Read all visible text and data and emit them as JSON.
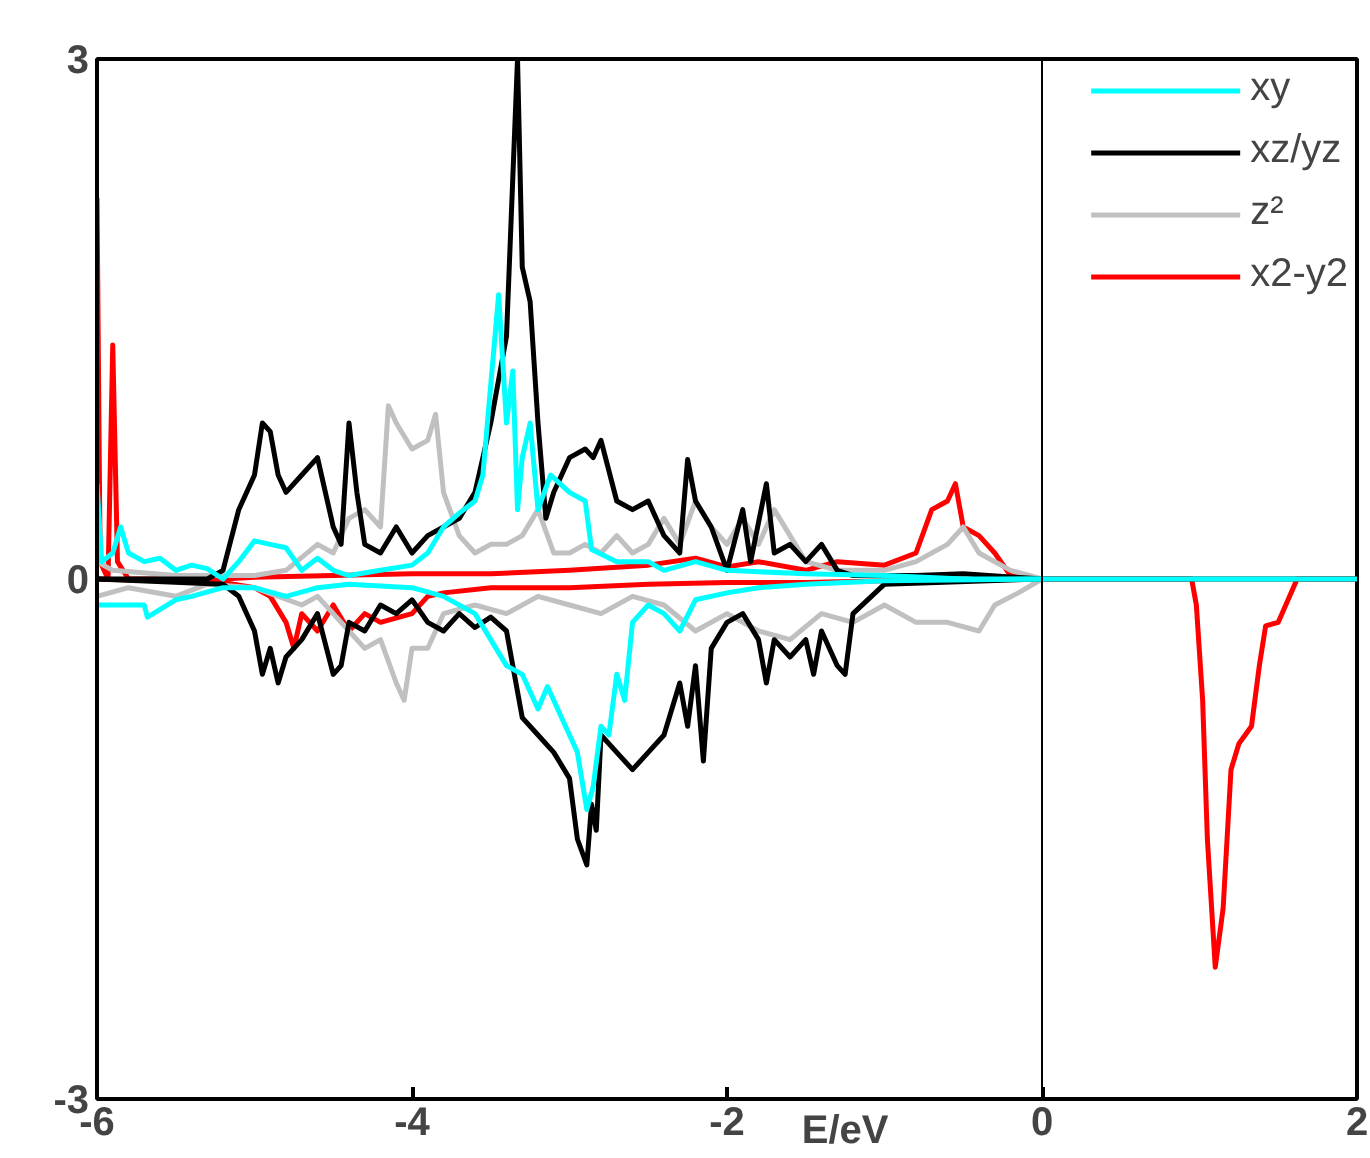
{
  "chart_data": {
    "type": "line",
    "xlabel": "E/eV",
    "xlim": [
      -6,
      2
    ],
    "ylim": [
      -3,
      3
    ],
    "xticks": [
      -6,
      -4,
      -2,
      0,
      2
    ],
    "yticks": [
      -3,
      0,
      3
    ],
    "legend": "top right",
    "ref_lines": [
      {
        "axis": "x",
        "value": 0,
        "color": "#000000"
      }
    ],
    "series": [
      {
        "name": "xy",
        "color": "#00ffff",
        "x": [
          -6.0,
          -5.97,
          -5.9,
          -5.85,
          -5.8,
          -5.7,
          -5.6,
          -5.5,
          -5.4,
          -5.3,
          -5.2,
          -5.1,
          -5.0,
          -4.9,
          -4.8,
          -4.7,
          -4.6,
          -4.5,
          -4.4,
          -4.2,
          -4.0,
          -3.9,
          -3.8,
          -3.7,
          -3.6,
          -3.55,
          -3.45,
          -3.4,
          -3.36,
          -3.33,
          -3.3,
          -3.25,
          -3.2,
          -3.12,
          -3.0,
          -2.9,
          -2.86,
          -2.7,
          -2.5,
          -2.4,
          -2.2,
          -2.0,
          -1.5,
          -1.0,
          -0.5,
          0,
          2
        ],
        "values": [
          0.55,
          0.1,
          0.15,
          0.3,
          0.15,
          0.1,
          0.12,
          0.05,
          0.08,
          0.06,
          0.0,
          0.1,
          0.22,
          0.2,
          0.18,
          0.05,
          0.12,
          0.05,
          0.02,
          0.05,
          0.08,
          0.15,
          0.3,
          0.38,
          0.45,
          0.6,
          1.64,
          0.9,
          1.2,
          0.4,
          0.7,
          0.9,
          0.4,
          0.6,
          0.5,
          0.45,
          0.17,
          0.1,
          0.1,
          0.05,
          0.1,
          0.05,
          0.03,
          0.02,
          0.0,
          0,
          0
        ]
      },
      {
        "color": "#00ffff",
        "x": [
          -6.0,
          -5.7,
          -5.68,
          -5.5,
          -5.4,
          -5.2,
          -5.0,
          -4.8,
          -4.6,
          -4.4,
          -4.0,
          -3.8,
          -3.6,
          -3.5,
          -3.4,
          -3.3,
          -3.2,
          -3.14,
          -3.0,
          -2.95,
          -2.89,
          -2.85,
          -2.8,
          -2.75,
          -2.7,
          -2.65,
          -2.6,
          -2.5,
          -2.4,
          -2.3,
          -2.2,
          -2.0,
          -1.8,
          -1.5,
          -1.0,
          0
        ],
        "values": [
          -0.15,
          -0.15,
          -0.22,
          -0.12,
          -0.1,
          -0.05,
          -0.05,
          -0.1,
          -0.05,
          -0.03,
          -0.05,
          -0.1,
          -0.2,
          -0.35,
          -0.5,
          -0.55,
          -0.75,
          -0.62,
          -0.9,
          -1.0,
          -1.33,
          -1.2,
          -0.85,
          -0.9,
          -0.55,
          -0.7,
          -0.25,
          -0.15,
          -0.2,
          -0.3,
          -0.12,
          -0.08,
          -0.05,
          -0.03,
          -0.01,
          0
        ]
      },
      {
        "name": "xz/yz",
        "color": "#000000",
        "x": [
          -6.0,
          -5.3,
          -5.2,
          -5.1,
          -5.0,
          -4.95,
          -4.9,
          -4.85,
          -4.8,
          -4.7,
          -4.6,
          -4.55,
          -4.5,
          -4.45,
          -4.4,
          -4.35,
          -4.3,
          -4.2,
          -4.1,
          -4.0,
          -3.9,
          -3.8,
          -3.7,
          -3.6,
          -3.5,
          -3.4,
          -3.33,
          -3.3,
          -3.25,
          -3.2,
          -3.15,
          -3.1,
          -3.0,
          -2.9,
          -2.85,
          -2.8,
          -2.7,
          -2.6,
          -2.5,
          -2.4,
          -2.3,
          -2.25,
          -2.2,
          -2.1,
          -2.0,
          -1.9,
          -1.85,
          -1.75,
          -1.7,
          -1.6,
          -1.5,
          -1.4,
          -1.3,
          -1.2,
          -0.8,
          -0.5,
          0,
          2
        ],
        "values": [
          0,
          0,
          0.05,
          0.4,
          0.6,
          0.9,
          0.85,
          0.6,
          0.5,
          0.6,
          0.7,
          0.5,
          0.3,
          0.2,
          0.9,
          0.5,
          0.2,
          0.15,
          0.3,
          0.15,
          0.25,
          0.3,
          0.35,
          0.5,
          0.9,
          1.4,
          3.0,
          1.8,
          1.6,
          0.9,
          0.35,
          0.5,
          0.7,
          0.75,
          0.7,
          0.8,
          0.45,
          0.4,
          0.45,
          0.25,
          0.15,
          0.69,
          0.45,
          0.3,
          0.05,
          0.4,
          0.1,
          0.55,
          0.15,
          0.2,
          0.1,
          0.2,
          0.05,
          0.02,
          0.02,
          0.03,
          0,
          0
        ]
      },
      {
        "color": "#000000",
        "x": [
          -6.0,
          -5.2,
          -5.1,
          -5.0,
          -4.95,
          -4.9,
          -4.85,
          -4.8,
          -4.7,
          -4.6,
          -4.5,
          -4.45,
          -4.4,
          -4.3,
          -4.2,
          -4.1,
          -4.0,
          -3.9,
          -3.8,
          -3.7,
          -3.6,
          -3.5,
          -3.4,
          -3.35,
          -3.3,
          -3.2,
          -3.1,
          -3.0,
          -2.95,
          -2.89,
          -2.86,
          -2.83,
          -2.8,
          -2.7,
          -2.6,
          -2.5,
          -2.4,
          -2.3,
          -2.25,
          -2.2,
          -2.15,
          -2.1,
          -2.0,
          -1.9,
          -1.8,
          -1.75,
          -1.7,
          -1.6,
          -1.5,
          -1.45,
          -1.4,
          -1.3,
          -1.25,
          -1.2,
          -1.0,
          0
        ],
        "values": [
          0,
          -0.03,
          -0.1,
          -0.3,
          -0.55,
          -0.4,
          -0.6,
          -0.45,
          -0.35,
          -0.2,
          -0.55,
          -0.5,
          -0.25,
          -0.3,
          -0.15,
          -0.2,
          -0.12,
          -0.25,
          -0.3,
          -0.2,
          -0.28,
          -0.22,
          -0.3,
          -0.55,
          -0.8,
          -0.9,
          -1.0,
          -1.15,
          -1.5,
          -1.65,
          -1.3,
          -1.45,
          -0.9,
          -1.0,
          -1.1,
          -1.0,
          -0.9,
          -0.6,
          -0.85,
          -0.5,
          -1.05,
          -0.4,
          -0.25,
          -0.2,
          -0.35,
          -0.6,
          -0.35,
          -0.45,
          -0.35,
          -0.55,
          -0.3,
          -0.5,
          -0.55,
          -0.2,
          -0.03,
          0
        ]
      },
      {
        "name": "z²",
        "color": "#c0c0c0",
        "x": [
          -6.0,
          -5.9,
          -5.5,
          -5.0,
          -4.8,
          -4.6,
          -4.5,
          -4.4,
          -4.3,
          -4.2,
          -4.15,
          -4.1,
          -4.0,
          -3.9,
          -3.85,
          -3.8,
          -3.7,
          -3.6,
          -3.5,
          -3.4,
          -3.3,
          -3.2,
          -3.1,
          -3.0,
          -2.9,
          -2.8,
          -2.7,
          -2.6,
          -2.5,
          -2.4,
          -2.3,
          -2.2,
          -2.1,
          -2.0,
          -1.9,
          -1.8,
          -1.7,
          -1.6,
          -1.5,
          -1.3,
          -1.0,
          -0.8,
          -0.6,
          -0.5,
          -0.4,
          -0.2,
          0
        ],
        "values": [
          0.1,
          0.05,
          0.02,
          0.02,
          0.05,
          0.2,
          0.15,
          0.35,
          0.4,
          0.3,
          1.0,
          0.9,
          0.75,
          0.8,
          0.95,
          0.5,
          0.25,
          0.15,
          0.2,
          0.2,
          0.25,
          0.4,
          0.15,
          0.15,
          0.2,
          0.15,
          0.25,
          0.15,
          0.2,
          0.35,
          0.2,
          0.45,
          0.3,
          0.2,
          0.35,
          0.2,
          0.4,
          0.25,
          0.1,
          0.05,
          0.05,
          0.1,
          0.2,
          0.3,
          0.15,
          0.05,
          0
        ]
      },
      {
        "color": "#c0c0c0",
        "x": [
          -6.0,
          -5.8,
          -5.5,
          -5.3,
          -5.0,
          -4.7,
          -4.6,
          -4.5,
          -4.4,
          -4.3,
          -4.2,
          -4.1,
          -4.05,
          -4.0,
          -3.9,
          -3.8,
          -3.6,
          -3.4,
          -3.2,
          -3.0,
          -2.8,
          -2.6,
          -2.4,
          -2.2,
          -2.0,
          -1.8,
          -1.6,
          -1.4,
          -1.2,
          -1.0,
          -0.8,
          -0.6,
          -0.4,
          -0.3,
          -0.15,
          0
        ],
        "values": [
          -0.1,
          -0.05,
          -0.1,
          -0.03,
          -0.05,
          -0.15,
          -0.1,
          -0.2,
          -0.3,
          -0.4,
          -0.35,
          -0.6,
          -0.7,
          -0.4,
          -0.4,
          -0.2,
          -0.15,
          -0.2,
          -0.1,
          -0.15,
          -0.2,
          -0.1,
          -0.15,
          -0.3,
          -0.2,
          -0.3,
          -0.35,
          -0.2,
          -0.25,
          -0.15,
          -0.25,
          -0.25,
          -0.3,
          -0.15,
          -0.08,
          0
        ]
      },
      {
        "name": "x2-y2",
        "color": "#ff0000",
        "x": [
          -6.0,
          -5.98,
          -5.93,
          -5.9,
          -5.87,
          -5.8,
          -5.2,
          -5.0,
          -4.5,
          -4.0,
          -3.5,
          -3.0,
          -2.5,
          -2.2,
          -2.0,
          -1.8,
          -1.5,
          -1.3,
          -1.0,
          -0.8,
          -0.7,
          -0.6,
          -0.55,
          -0.5,
          -0.4,
          -0.3,
          -0.2,
          0
        ],
        "values": [
          2.2,
          0.1,
          0.0,
          1.35,
          0.1,
          0.0,
          0.0,
          0.01,
          0.02,
          0.03,
          0.03,
          0.05,
          0.08,
          0.12,
          0.07,
          0.1,
          0.05,
          0.1,
          0.08,
          0.15,
          0.4,
          0.45,
          0.55,
          0.3,
          0.25,
          0.15,
          0.02,
          0
        ]
      },
      {
        "color": "#ff0000",
        "x": [
          -6.0,
          -5.2,
          -5.0,
          -4.9,
          -4.8,
          -4.75,
          -4.7,
          -4.6,
          -4.5,
          -4.4,
          -4.3,
          -4.2,
          -4.0,
          -3.9,
          -3.8,
          -3.5,
          -3.0,
          -2.5,
          -2.0,
          -1.5,
          -1.0,
          0,
          0.95,
          0.98,
          1.02,
          1.05,
          1.1,
          1.15,
          1.2,
          1.25,
          1.33,
          1.38,
          1.42,
          1.5,
          1.62,
          2
        ],
        "values": [
          0,
          -0.02,
          -0.05,
          -0.1,
          -0.25,
          -0.4,
          -0.2,
          -0.3,
          -0.15,
          -0.3,
          -0.2,
          -0.25,
          -0.2,
          -0.1,
          -0.08,
          -0.05,
          -0.05,
          -0.03,
          -0.02,
          -0.02,
          -0.01,
          0,
          0,
          -0.15,
          -0.7,
          -1.5,
          -2.24,
          -1.9,
          -1.1,
          -0.95,
          -0.85,
          -0.5,
          -0.27,
          -0.25,
          0,
          0
        ]
      }
    ]
  }
}
